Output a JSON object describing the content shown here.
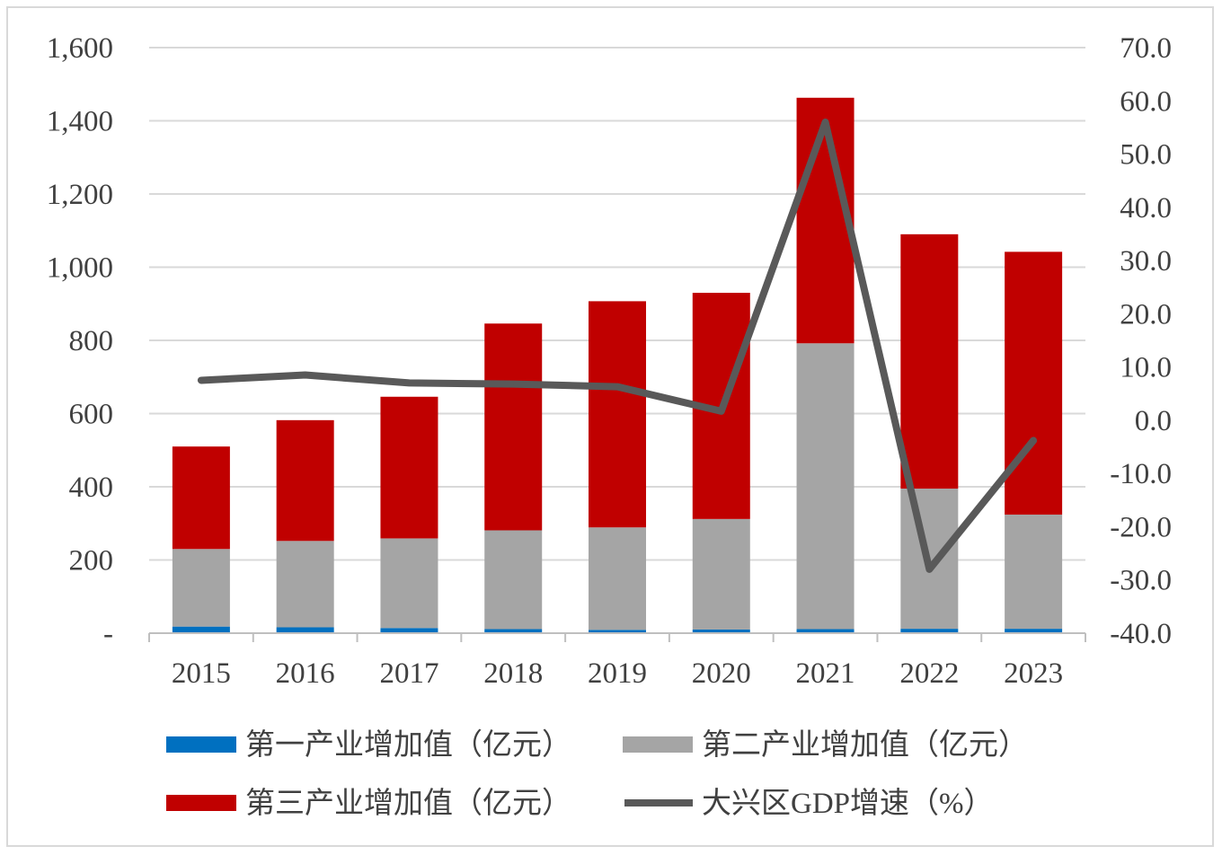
{
  "chart_data": {
    "type": "bar",
    "stacked": true,
    "categories": [
      "2015",
      "2016",
      "2017",
      "2018",
      "2019",
      "2020",
      "2021",
      "2022",
      "2023"
    ],
    "series": [
      {
        "name": "第一产业增加值（亿元）",
        "kind": "bar",
        "axis": "left",
        "color": "#0070c0",
        "values": [
          18,
          16,
          14,
          11,
          9,
          10,
          11,
          12,
          12
        ]
      },
      {
        "name": "第二产业增加值（亿元）",
        "kind": "bar",
        "axis": "left",
        "color": "#a5a5a5",
        "values": [
          212,
          236,
          245,
          270,
          280,
          302,
          781,
          383,
          312
        ]
      },
      {
        "name": "第三产业增加值（亿元）",
        "kind": "bar",
        "axis": "left",
        "color": "#c00000",
        "values": [
          280,
          330,
          387,
          565,
          618,
          618,
          671,
          695,
          718
        ]
      },
      {
        "name": "大兴区GDP增速（%）",
        "kind": "line",
        "axis": "right",
        "color": "#595959",
        "values": [
          7.5,
          8.5,
          7.0,
          6.8,
          6.3,
          1.7,
          56.0,
          -28.0,
          -3.8
        ]
      }
    ],
    "left_axis": {
      "min": 0,
      "max": 1600,
      "step": 200,
      "tick_labels": [
        "-",
        "200",
        "400",
        "600",
        "800",
        "1,000",
        "1,200",
        "1,400",
        "1,600"
      ]
    },
    "right_axis": {
      "min": -40,
      "max": 70,
      "step": 10,
      "tick_labels": [
        "-40.0",
        "-30.0",
        "-20.0",
        "-10.0",
        "0.0",
        "10.0",
        "20.0",
        "30.0",
        "40.0",
        "50.0",
        "60.0",
        "70.0"
      ]
    },
    "grid": true,
    "legend_position": "bottom"
  }
}
